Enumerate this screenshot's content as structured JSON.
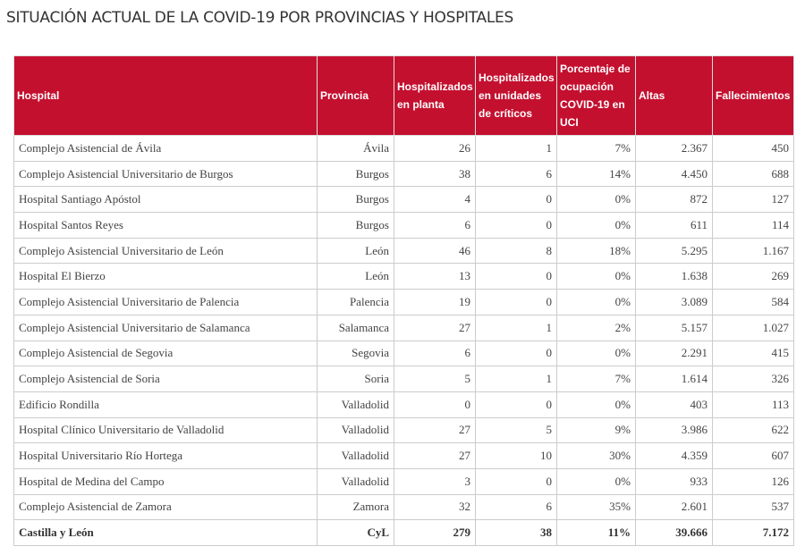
{
  "header": {
    "title": "SITUACIÓN ACTUAL DE LA COVID-19 POR PROVINCIAS Y HOSPITALES"
  },
  "table": {
    "columns": [
      "Hospital",
      "Provincia",
      "Hospitalizados en planta",
      "Hospitalizados en unidades de críticos",
      "Porcentaje de ocupación COVID-19 en UCI",
      "Altas",
      "Fallecimientos"
    ],
    "rows": [
      [
        "Complejo Asistencial de Ávila",
        "Ávila",
        "26",
        "1",
        "7%",
        "2.367",
        "450"
      ],
      [
        "Complejo Asistencial Universitario de Burgos",
        "Burgos",
        "38",
        "6",
        "14%",
        "4.450",
        "688"
      ],
      [
        "Hospital Santiago Apóstol",
        "Burgos",
        "4",
        "0",
        "0%",
        "872",
        "127"
      ],
      [
        "Hospital Santos Reyes",
        "Burgos",
        "6",
        "0",
        "0%",
        "611",
        "114"
      ],
      [
        "Complejo Asistencial Universitario de León",
        "León",
        "46",
        "8",
        "18%",
        "5.295",
        "1.167"
      ],
      [
        "Hospital El Bierzo",
        "León",
        "13",
        "0",
        "0%",
        "1.638",
        "269"
      ],
      [
        "Complejo Asistencial Universitario de Palencia",
        "Palencia",
        "19",
        "0",
        "0%",
        "3.089",
        "584"
      ],
      [
        "Complejo Asistencial Universitario de Salamanca",
        "Salamanca",
        "27",
        "1",
        "2%",
        "5.157",
        "1.027"
      ],
      [
        "Complejo Asistencial de Segovia",
        "Segovia",
        "6",
        "0",
        "0%",
        "2.291",
        "415"
      ],
      [
        "Complejo Asistencial de Soria",
        "Soria",
        "5",
        "1",
        "7%",
        "1.614",
        "326"
      ],
      [
        "Edificio Rondilla",
        "Valladolid",
        "0",
        "0",
        "0%",
        "403",
        "113"
      ],
      [
        "Hospital Clínico Universitario de Valladolid",
        "Valladolid",
        "27",
        "5",
        "9%",
        "3.986",
        "622"
      ],
      [
        "Hospital Universitario Río Hortega",
        "Valladolid",
        "27",
        "10",
        "30%",
        "4.359",
        "607"
      ],
      [
        "Hospital de Medina del Campo",
        "Valladolid",
        "3",
        "0",
        "0%",
        "933",
        "126"
      ],
      [
        "Complejo Asistencial de Zamora",
        "Zamora",
        "32",
        "6",
        "35%",
        "2.601",
        "537"
      ]
    ],
    "total": [
      "Castilla y León",
      "CyL",
      "279",
      "38",
      "11%",
      "39.666",
      "7.172"
    ]
  }
}
